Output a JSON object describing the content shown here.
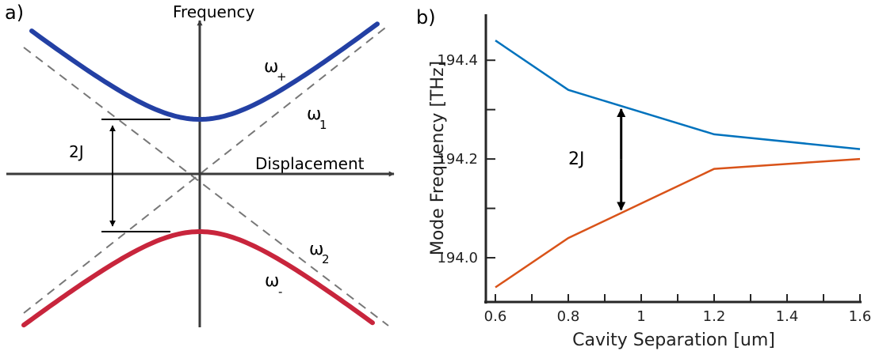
{
  "chart_data": [
    {
      "type": "line",
      "panel_label": "a)",
      "xlabel": "Displacement",
      "ylabel": "Frequency",
      "annotation": "2J",
      "series": [
        {
          "name": "ω",
          "sub": "+",
          "color": "#2340a4"
        },
        {
          "name": "ω",
          "sub": "1",
          "color": "#777777"
        },
        {
          "name": "ω",
          "sub": "2",
          "color": "#777777"
        },
        {
          "name": "ω",
          "sub": "-",
          "color": "#c8253c"
        }
      ]
    },
    {
      "type": "line",
      "panel_label": "b)",
      "xlabel": "Cavity Separation [um]",
      "ylabel": "Mode Frequency [THz]",
      "annotation": "2J",
      "xlim": [
        0.6,
        1.6
      ],
      "ylim": [
        193.92,
        194.49
      ],
      "x_ticks": [
        0.6,
        0.8,
        1.0,
        1.2,
        1.4,
        1.6
      ],
      "x_tick_labels": [
        "0.6",
        "0.8",
        "1",
        "1.2",
        "1.4",
        "1.6"
      ],
      "y_ticks": [
        194.0,
        194.2,
        194.4
      ],
      "y_tick_labels": [
        "194.0",
        "194.2",
        "194.4"
      ],
      "x": [
        0.6,
        0.8,
        1.2,
        1.6
      ],
      "series": [
        {
          "color": "#0072bd",
          "values": [
            194.44,
            194.34,
            194.25,
            194.22
          ]
        },
        {
          "color": "#d95319",
          "values": [
            193.94,
            194.04,
            194.18,
            194.2
          ]
        }
      ],
      "coupling_at_x": 0.945
    }
  ]
}
